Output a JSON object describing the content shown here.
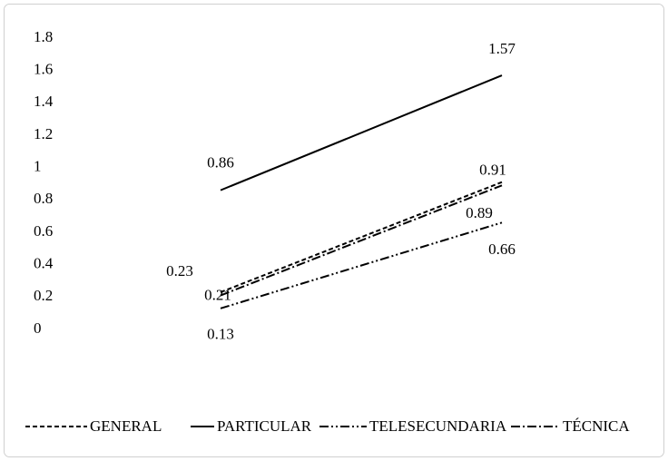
{
  "chart_data": {
    "type": "line",
    "categories": [
      null,
      null
    ],
    "series": [
      {
        "name": "GENERAL",
        "color": "#000000",
        "dash": "dashed",
        "values": [
          0.23,
          0.91
        ]
      },
      {
        "name": "PARTICULAR",
        "color": "#000000",
        "dash": "solid",
        "values": [
          0.86,
          1.57
        ]
      },
      {
        "name": "TELESECUNDARIA",
        "color": "#000000",
        "dash": "dashdotdot",
        "values": [
          0.13,
          0.66
        ]
      },
      {
        "name": "TÉCNICA",
        "color": "#000000",
        "dash": "dashdot",
        "values": [
          0.21,
          0.89
        ]
      }
    ],
    "ylim": [
      0,
      1.8
    ],
    "yticks": [
      0,
      0.2,
      0.4,
      0.6,
      0.8,
      1,
      1.2,
      1.4,
      1.6,
      1.8
    ],
    "grid": false,
    "legend": "bottom"
  }
}
